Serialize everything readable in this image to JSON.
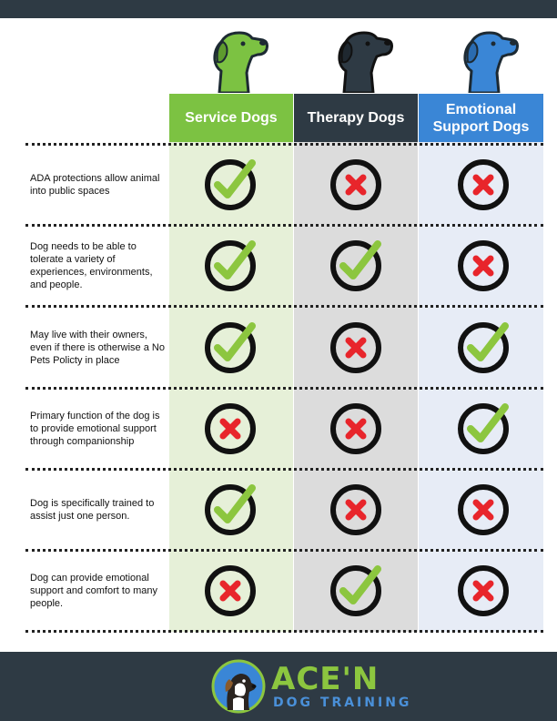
{
  "columns": [
    {
      "title": "Service Dogs",
      "color": "#7cc242",
      "icon": "green-dog-head-icon"
    },
    {
      "title": "Therapy Dogs",
      "color": "#2e3a44",
      "icon": "black-dog-head-icon"
    },
    {
      "title": "Emotional Support Dogs",
      "color": "#3a86d6",
      "icon": "blue-dog-head-icon"
    }
  ],
  "rows": [
    {
      "label": "ADA protections allow animal into public spaces",
      "values": [
        true,
        false,
        false
      ]
    },
    {
      "label": "Dog needs to be able to tolerate a variety of experiences, environments, and people.",
      "values": [
        true,
        true,
        false
      ]
    },
    {
      "label": "May live with their owners, even if there is otherwise a No Pets Policty in place",
      "values": [
        true,
        false,
        true
      ]
    },
    {
      "label": "Primary function of the dog is to provide emotional support through companionship",
      "values": [
        false,
        false,
        true
      ]
    },
    {
      "label": "Dog is specifically trained to assist just one person.",
      "values": [
        true,
        false,
        false
      ]
    },
    {
      "label": "Dog can provide emotional support and comfort to many people.",
      "values": [
        false,
        true,
        false
      ]
    }
  ],
  "marks": {
    "check_color": "#8cc63f",
    "cross_color": "#e8252b",
    "ring_color": "#111111"
  },
  "footer": {
    "brand_name": "ACE'N",
    "brand_sub": "DOG TRAINING",
    "brand_green": "#8cc63f",
    "brand_blue": "#4a90d9",
    "logo_icon": "dog-mascot-logo-icon"
  }
}
